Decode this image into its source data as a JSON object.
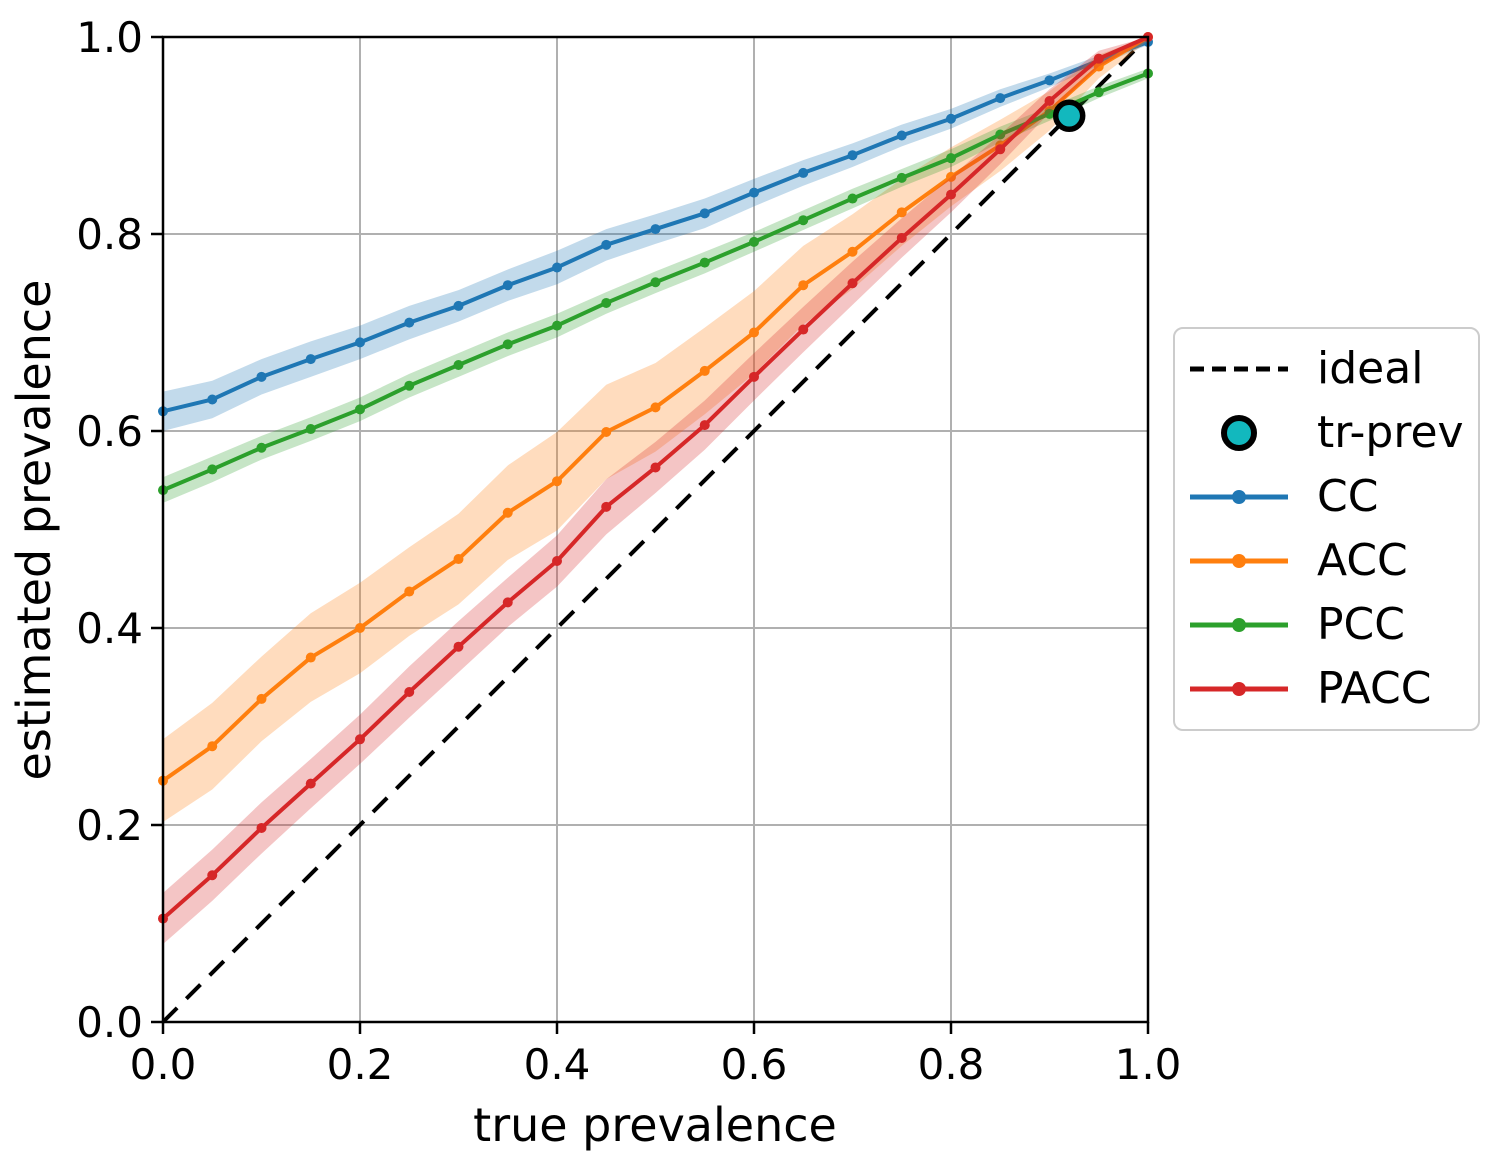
{
  "chart_data": {
    "type": "line",
    "title": "",
    "xlabel": "true prevalence",
    "ylabel": "estimated prevalence",
    "xlim": [
      0.0,
      1.0
    ],
    "ylim": [
      0.0,
      1.0
    ],
    "grid": true,
    "legend_position": "outside-right",
    "x_tick_values": [
      0.0,
      0.2,
      0.4,
      0.6,
      0.8,
      1.0
    ],
    "x_tick_labels": [
      "0.0",
      "0.2",
      "0.4",
      "0.6",
      "0.8",
      "1.0"
    ],
    "y_tick_values": [
      0.0,
      0.2,
      0.4,
      0.6,
      0.8,
      1.0
    ],
    "y_tick_labels": [
      "0.0",
      "0.2",
      "0.4",
      "0.6",
      "0.8",
      "1.0"
    ],
    "x": [
      0.0,
      0.05,
      0.1,
      0.15,
      0.2,
      0.25,
      0.3,
      0.35,
      0.4,
      0.45,
      0.5,
      0.55,
      0.6,
      0.65,
      0.7,
      0.75,
      0.8,
      0.85,
      0.9,
      0.95,
      1.0
    ],
    "series": [
      {
        "name": "CC",
        "color": "#1f77b4",
        "values": [
          0.62,
          0.632,
          0.655,
          0.673,
          0.69,
          0.71,
          0.727,
          0.748,
          0.766,
          0.789,
          0.805,
          0.821,
          0.842,
          0.862,
          0.88,
          0.9,
          0.917,
          0.938,
          0.956,
          0.976,
          0.995
        ],
        "band_halfwidth": [
          0.02,
          0.019,
          0.018,
          0.018,
          0.017,
          0.017,
          0.016,
          0.016,
          0.017,
          0.016,
          0.015,
          0.015,
          0.014,
          0.013,
          0.012,
          0.011,
          0.01,
          0.009,
          0.007,
          0.005,
          0.003
        ]
      },
      {
        "name": "ACC",
        "color": "#ff7f0e",
        "values": [
          0.245,
          0.28,
          0.328,
          0.37,
          0.4,
          0.437,
          0.47,
          0.517,
          0.549,
          0.599,
          0.624,
          0.661,
          0.7,
          0.748,
          0.782,
          0.822,
          0.858,
          0.89,
          0.925,
          0.97,
          1.0
        ],
        "band_halfwidth": [
          0.042,
          0.044,
          0.043,
          0.045,
          0.046,
          0.045,
          0.046,
          0.048,
          0.05,
          0.048,
          0.045,
          0.044,
          0.042,
          0.04,
          0.038,
          0.034,
          0.03,
          0.026,
          0.02,
          0.012,
          0.004
        ]
      },
      {
        "name": "PCC",
        "color": "#2ca02c",
        "values": [
          0.54,
          0.561,
          0.583,
          0.602,
          0.622,
          0.646,
          0.667,
          0.688,
          0.707,
          0.73,
          0.751,
          0.771,
          0.792,
          0.814,
          0.836,
          0.857,
          0.877,
          0.901,
          0.922,
          0.944,
          0.963
        ],
        "band_halfwidth": [
          0.013,
          0.013,
          0.012,
          0.012,
          0.012,
          0.012,
          0.012,
          0.012,
          0.012,
          0.011,
          0.011,
          0.011,
          0.01,
          0.01,
          0.01,
          0.009,
          0.009,
          0.008,
          0.007,
          0.006,
          0.005
        ]
      },
      {
        "name": "PACC",
        "color": "#d62728",
        "values": [
          0.105,
          0.149,
          0.197,
          0.242,
          0.287,
          0.335,
          0.381,
          0.426,
          0.468,
          0.523,
          0.563,
          0.606,
          0.655,
          0.703,
          0.75,
          0.796,
          0.84,
          0.886,
          0.935,
          0.978,
          1.0
        ],
        "band_halfwidth": [
          0.026,
          0.026,
          0.026,
          0.025,
          0.025,
          0.026,
          0.026,
          0.025,
          0.026,
          0.028,
          0.026,
          0.025,
          0.024,
          0.023,
          0.022,
          0.02,
          0.018,
          0.015,
          0.012,
          0.008,
          0.003
        ]
      }
    ],
    "reference_line": {
      "name": "ideal",
      "color": "#000000",
      "style": "dashed",
      "x": [
        0.0,
        1.0
      ],
      "y": [
        0.0,
        1.0
      ]
    },
    "highlight_marker": {
      "name": "tr-prev",
      "x": 0.92,
      "y": 0.92,
      "fill": "#12b8be",
      "edge_color": "#000000"
    },
    "band_opacity": 0.27,
    "grid_color": "#b0b0b0"
  }
}
